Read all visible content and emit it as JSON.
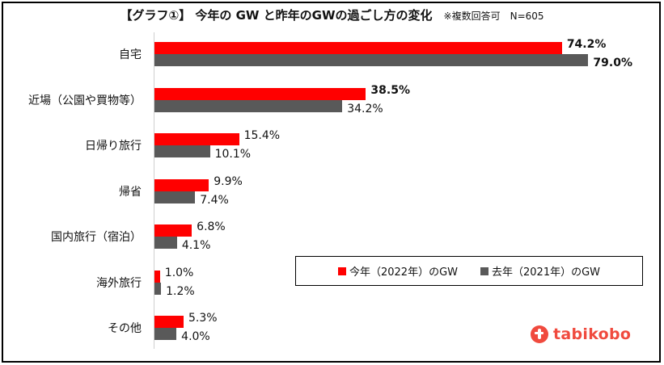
{
  "chart_data": {
    "type": "bar",
    "orientation": "horizontal",
    "title": "【グラフ①】 今年の GW と昨年のGWの過ごし方の変化",
    "subtitle": "※複数回答可　N=605",
    "categories": [
      "自宅",
      "近場（公園や買物等）",
      "日帰り旅行",
      "帰省",
      "国内旅行（宿泊）",
      "海外旅行",
      "その他"
    ],
    "series": [
      {
        "name": "今年（2022年）のGW",
        "color": "#ff0000",
        "values": [
          74.2,
          38.5,
          15.4,
          9.9,
          6.8,
          1.0,
          5.3
        ],
        "labels": [
          "74.2%",
          "38.5%",
          "15.4%",
          "9.9%",
          "6.8%",
          "1.0%",
          "5.3%"
        ],
        "bold": [
          true,
          true,
          false,
          false,
          false,
          false,
          false
        ]
      },
      {
        "name": "去年（2021年）のGW",
        "color": "#595959",
        "values": [
          79.0,
          34.2,
          10.1,
          7.4,
          4.1,
          1.2,
          4.0
        ],
        "labels": [
          "79.0%",
          "34.2%",
          "10.1%",
          "7.4%",
          "4.1%",
          "1.2%",
          "4.0%"
        ],
        "bold": [
          true,
          false,
          false,
          false,
          false,
          false,
          false
        ]
      }
    ],
    "xlabel": "",
    "ylabel": "",
    "xlim": [
      0,
      90
    ],
    "grid": false,
    "legend_position": "lower right (inside)"
  },
  "title": {
    "main": "【グラフ①】 今年の GW と昨年のGWの過ごし方の変化",
    "note": "※複数回答可　N=605"
  },
  "legend": {
    "current": {
      "label": "今年（2022年）のGW",
      "color": "#ff0000"
    },
    "previous": {
      "label": "去年（2021年）のGW",
      "color": "#595959"
    }
  },
  "logo": {
    "text": "tabikobo",
    "icon": "tabikobo-logo-icon",
    "color": "#f04a3e"
  }
}
